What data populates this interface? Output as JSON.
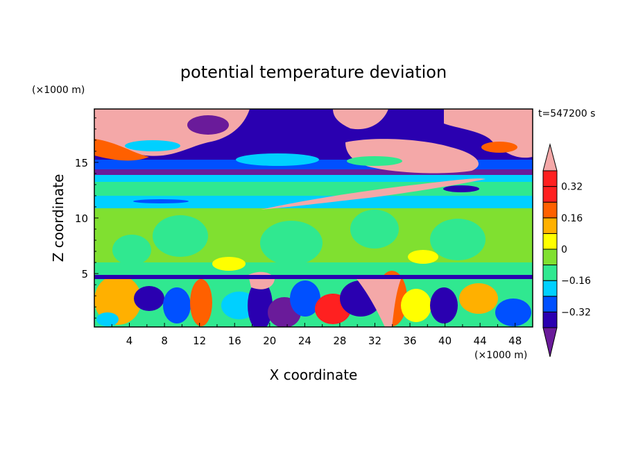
{
  "chart_data": {
    "type": "heatmap",
    "title": "potential temperature deviation",
    "xlabel": "X coordinate",
    "ylabel": "Z coordinate",
    "x_unit": "(×1000 m)",
    "y_unit": "(×1000 m)",
    "time_label": "t=547200 s",
    "xlim": [
      0,
      50
    ],
    "ylim": [
      0.2,
      19.8
    ],
    "x_ticks": [
      4,
      8,
      12,
      16,
      20,
      24,
      28,
      32,
      36,
      40,
      44,
      48
    ],
    "y_ticks": [
      5,
      10,
      15
    ],
    "colorbar": {
      "levels": [
        -0.4,
        -0.32,
        -0.24,
        -0.16,
        -0.08,
        0,
        0.08,
        0.16,
        0.24,
        0.32,
        0.4
      ],
      "tick_labels": [
        "0.32",
        "0.16",
        "0",
        "−0.16",
        "−0.32"
      ],
      "tick_values": [
        0.32,
        0.16,
        0,
        -0.16,
        -0.32
      ],
      "colors": [
        "#6a1b9a",
        "#2a00b0",
        "#0050ff",
        "#00d0ff",
        "#30e890",
        "#80e030",
        "#ffff00",
        "#ffb000",
        "#ff6000",
        "#ff2020",
        "#f4a8a8"
      ],
      "extend": "both"
    },
    "regions": [
      {
        "desc": "upper layer z>15",
        "values": [
          0.4,
          -0.4
        ]
      },
      {
        "desc": "stable band z 12-14.5",
        "values": [
          -0.1,
          -0.05
        ]
      },
      {
        "desc": "mid layer z 5-11",
        "values": [
          0.02
        ]
      },
      {
        "desc": "boundary layer z<5",
        "values": [
          -0.4,
          0.4
        ]
      }
    ]
  }
}
